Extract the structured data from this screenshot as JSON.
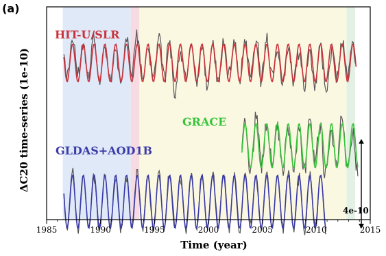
{
  "chart_data": {
    "type": "line",
    "panel_label": "(a)",
    "xlabel": "Time (year)",
    "ylabel": "ΔC20 time-series (1e-10)",
    "xlim": [
      1985,
      2015
    ],
    "x_ticks": [
      "1985",
      "1990",
      "1995",
      "2000",
      "2005",
      "2010",
      "2015"
    ],
    "y_ticks_shown": false,
    "scale_bar": {
      "label": "4e-10",
      "length": 4
    },
    "background_periods": [
      {
        "from": 1986.5,
        "to": 1992.8,
        "color": "#dfe9f7"
      },
      {
        "from": 1992.8,
        "to": 1993.6,
        "color": "#f6dbe3"
      },
      {
        "from": 1993.6,
        "to": 2012.8,
        "color": "#fbf8e2"
      },
      {
        "from": 2012.8,
        "to": 2013.6,
        "color": "#e3f0e4"
      }
    ],
    "series": [
      {
        "name": "HIT-U/SLR",
        "label_color": "#c8323c",
        "model_color": "#c8323c",
        "obs_color": "#555555",
        "offset": 7.0,
        "amplitude": 0.85,
        "start": 1986.6,
        "end": 2013.7,
        "obs_noise": 0.75
      },
      {
        "name": "GRACE",
        "label_color": "#36c43a",
        "model_color": "#36c43a",
        "obs_color": "#555555",
        "offset": 3.3,
        "amplitude": 1.0,
        "start": 2003.1,
        "end": 2013.9,
        "obs_noise": 0.9
      },
      {
        "name": "GLDAS+AOD1B",
        "label_color": "#3a3aa8",
        "model_color": "#3a3aa8",
        "obs_color": "#555555",
        "offset": 0.8,
        "amplitude": 1.2,
        "start": 1986.6,
        "end": 2011.0,
        "obs_noise": 0.3
      }
    ]
  }
}
